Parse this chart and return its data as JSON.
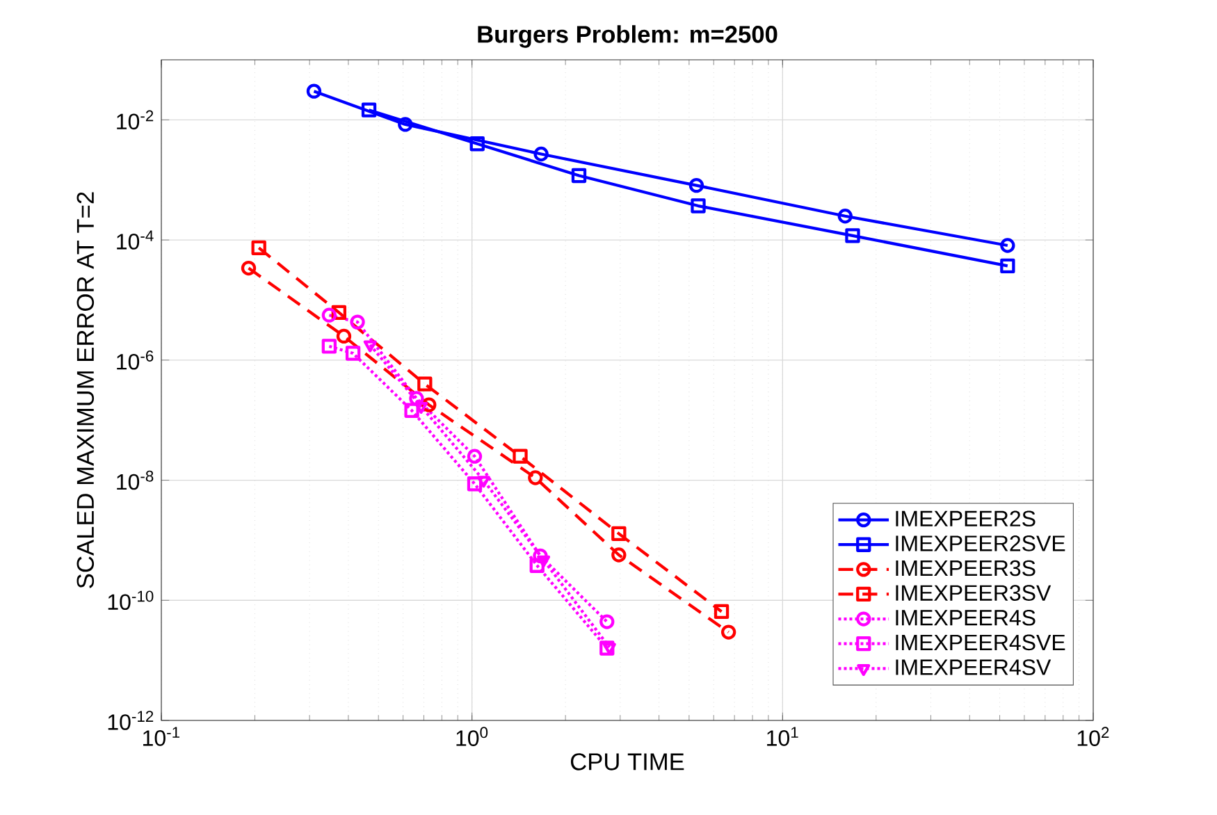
{
  "chart_data": {
    "type": "line",
    "title": "Burgers Problem: m=2500",
    "xlabel": "CPU TIME",
    "ylabel": "SCALED MAXIMUM ERROR AT T=2",
    "log": "xy",
    "grid": true,
    "legend": "bottom right",
    "xlim": [
      0.1,
      100
    ],
    "ylim": [
      1e-12,
      0.1
    ],
    "xticks": [
      {
        "value": 0.1,
        "label": "10$^{-1}$"
      },
      {
        "value": 1,
        "label": "10$^{0}$"
      },
      {
        "value": 10,
        "label": "10$^{1}$"
      },
      {
        "value": 100,
        "label": "10$^{2}$"
      }
    ],
    "yticks": [
      {
        "value": 1e-12,
        "label": "10$^{-12}$"
      },
      {
        "value": 1e-10,
        "label": "10$^{-10}$"
      },
      {
        "value": 1e-08,
        "label": "10$^{-8}$"
      },
      {
        "value": 1e-06,
        "label": "10$^{-6}$"
      },
      {
        "value": 0.0001,
        "label": "10$^{-4}$"
      },
      {
        "value": 0.01,
        "label": "10$^{-2}$"
      }
    ],
    "series": [
      {
        "name": "IMEXPEER2S",
        "color": "#0000ff",
        "marker": "circle",
        "line_style": "solid",
        "x": [
          0.31,
          0.61,
          1.67,
          5.28,
          15.9,
          53
        ],
        "values": [
          0.03,
          0.0084,
          0.0027,
          0.00081,
          0.00025,
          8.1e-05
        ]
      },
      {
        "name": "IMEXPEER2SVE",
        "color": "#0000ff",
        "marker": "square",
        "line_style": "solid",
        "x": [
          0.466,
          1.04,
          2.21,
          5.35,
          16.8,
          53
        ],
        "values": [
          0.0146,
          0.004,
          0.00118,
          0.00037,
          0.000118,
          3.7e-05
        ]
      },
      {
        "name": "IMEXPEER3S",
        "color": "#ff0000",
        "marker": "circle",
        "line_style": "dashed",
        "x": [
          0.191,
          0.387,
          0.727,
          1.6,
          2.97,
          6.7
        ],
        "values": [
          3.4e-05,
          2.5e-06,
          1.8e-07,
          1.1e-08,
          5.7e-10,
          2.95e-11
        ]
      },
      {
        "name": "IMEXPEER3SV",
        "color": "#ff0000",
        "marker": "square",
        "line_style": "dashed",
        "x": [
          0.206,
          0.373,
          0.705,
          1.43,
          2.97,
          6.36
        ],
        "values": [
          7.4e-05,
          6.2e-06,
          4e-07,
          2.5e-08,
          1.29e-09,
          6.5e-11
        ]
      },
      {
        "name": "IMEXPEER4S",
        "color": "#ff00ff",
        "marker": "circle",
        "line_style": "dotted",
        "x": [
          0.347,
          0.428,
          0.663,
          1.02,
          1.66,
          2.72
        ],
        "values": [
          5.6e-06,
          4.3e-06,
          2.3e-07,
          2.5e-08,
          5.5e-10,
          4.4e-11
        ]
      },
      {
        "name": "IMEXPEER4SVE",
        "color": "#ff00ff",
        "marker": "square",
        "line_style": "dotted",
        "x": [
          0.347,
          0.414,
          0.64,
          1.02,
          1.62,
          2.72
        ],
        "values": [
          1.7e-06,
          1.3e-06,
          1.45e-07,
          8.7e-09,
          3.8e-10,
          1.6e-11
        ]
      },
      {
        "name": "IMEXPEER4SV",
        "color": "#ff00ff",
        "marker": "triangle",
        "line_style": "dotted",
        "x": [
          0.47,
          0.686,
          1.09,
          1.7,
          2.77
        ],
        "values": [
          1.8e-06,
          1.7e-07,
          1e-08,
          4.7e-10,
          1.65e-11
        ]
      }
    ]
  }
}
